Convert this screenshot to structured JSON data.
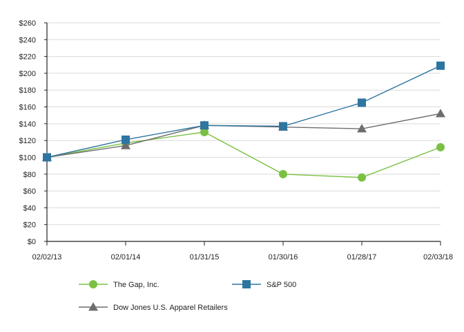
{
  "chart_data": {
    "type": "line",
    "categories": [
      "02/02/13",
      "02/01/14",
      "01/31/15",
      "01/30/16",
      "01/28/17",
      "02/03/18"
    ],
    "ylim": [
      0,
      260
    ],
    "yticks": [
      0,
      20,
      40,
      60,
      80,
      100,
      120,
      140,
      160,
      180,
      200,
      220,
      240,
      260
    ],
    "ytick_labels": [
      "$0",
      "$20",
      "$40",
      "$60",
      "$80",
      "$100",
      "$120",
      "$140",
      "$160",
      "$180",
      "$200",
      "$220",
      "$240",
      "$260"
    ],
    "grid": true,
    "legend_position": "bottom",
    "series": [
      {
        "name": "The Gap, Inc.",
        "values": [
          100,
          117,
          130,
          80,
          76,
          112
        ],
        "color": "#7ac143",
        "marker": "circle"
      },
      {
        "name": "S&P 500",
        "values": [
          100,
          121,
          138,
          137,
          165,
          209
        ],
        "color": "#2e75a0",
        "marker": "square"
      },
      {
        "name": "Dow Jones U.S. Apparel Retailers",
        "values": [
          100,
          114,
          138,
          136,
          134,
          152
        ],
        "color": "#6d6d6d",
        "marker": "triangle"
      }
    ]
  }
}
